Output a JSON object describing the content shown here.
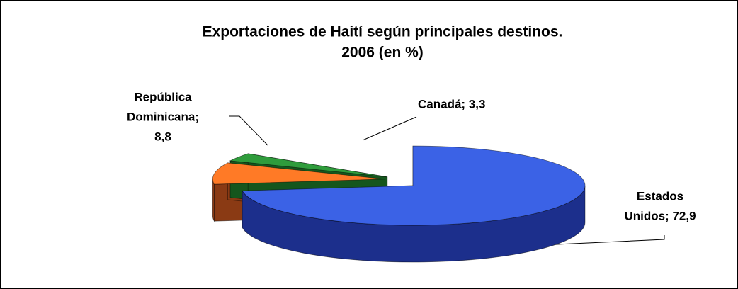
{
  "chart_data": {
    "type": "pie3d",
    "title": [
      "Exportaciones de Haití según principales destinos.",
      "2006 (en %)"
    ],
    "values": [
      72.9,
      8.8,
      3.3
    ],
    "value_labels": [
      [
        "Estados",
        "Unidos; 72,9"
      ],
      [
        "República",
        "Dominicana;",
        "8,8"
      ],
      [
        "Canadá; 3,3"
      ]
    ],
    "colors": [
      "#3b62e6",
      "#ff7a26",
      "#2f9c3c"
    ],
    "side_colors": [
      "#1c2f8c",
      "#8a3a14",
      "#15561d"
    ]
  }
}
